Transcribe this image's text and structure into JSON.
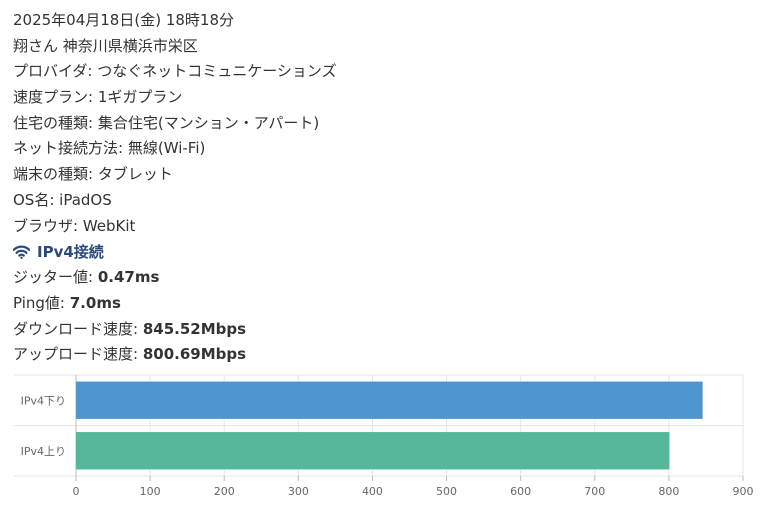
{
  "datetime": "2025年04月18日(金) 18時18分",
  "user_location": "翔さん 神奈川県横浜市栄区",
  "fields": [
    {
      "label": "プロバイダ",
      "value": "つなぐネットコミュニケーションズ"
    },
    {
      "label": "速度プラン",
      "value": "1ギガプラン"
    },
    {
      "label": "住宅の種類",
      "value": "集合住宅(マンション・アパート)"
    },
    {
      "label": "ネット接続方法",
      "value": "無線(Wi-Fi)"
    },
    {
      "label": "端末の種類",
      "value": "タブレット"
    },
    {
      "label": "OS名",
      "value": "iPadOS"
    },
    {
      "label": "ブラウザ",
      "value": "WebKit"
    }
  ],
  "section": {
    "icon": "wifi-icon",
    "title": "IPv4接続",
    "color": "#2c4a7c"
  },
  "results": [
    {
      "label": "ジッター値",
      "value": "0.47ms"
    },
    {
      "label": "Ping値",
      "value": "7.0ms"
    },
    {
      "label": "ダウンロード速度",
      "value": "845.52Mbps"
    },
    {
      "label": "アップロード速度",
      "value": "800.69Mbps"
    }
  ],
  "chart_data": {
    "type": "bar",
    "orientation": "horizontal",
    "categories": [
      "IPv4下り",
      "IPv4上り"
    ],
    "values": [
      845.52,
      800.69
    ],
    "colors": [
      "#4f95d0",
      "#55b89a"
    ],
    "xlim": [
      0,
      900
    ],
    "xticks": [
      0,
      100,
      200,
      300,
      400,
      500,
      600,
      700,
      800,
      900
    ],
    "grid": true
  }
}
